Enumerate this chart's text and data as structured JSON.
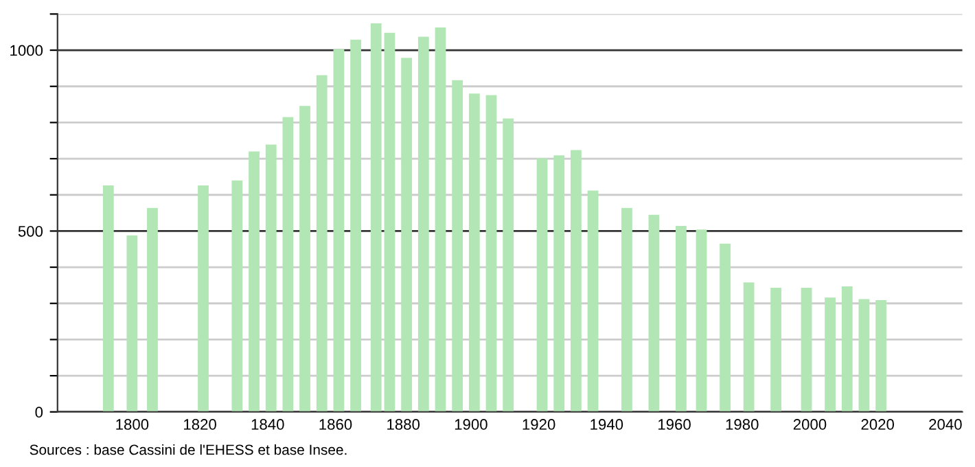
{
  "chart_data": {
    "type": "bar",
    "x": [
      1793,
      1800,
      1806,
      1821,
      1831,
      1836,
      1841,
      1846,
      1851,
      1856,
      1861,
      1866,
      1872,
      1876,
      1881,
      1886,
      1891,
      1896,
      1901,
      1906,
      1911,
      1921,
      1926,
      1931,
      1936,
      1946,
      1954,
      1962,
      1968,
      1975,
      1982,
      1990,
      1999,
      2006,
      2011,
      2016,
      2021
    ],
    "values": [
      626,
      488,
      564,
      626,
      640,
      720,
      739,
      815,
      846,
      931,
      1003,
      1029,
      1074,
      1048,
      979,
      1037,
      1063,
      917,
      880,
      876,
      811,
      701,
      709,
      724,
      612,
      564,
      545,
      514,
      504,
      465,
      358,
      343,
      343,
      316,
      347,
      312,
      309
    ],
    "color": "#b3e6b5",
    "xlim": [
      1778,
      2045
    ],
    "xticks": [
      1800,
      1820,
      1840,
      1860,
      1880,
      1900,
      1920,
      1940,
      1960,
      1980,
      2000,
      2020,
      2040
    ],
    "ylim": [
      0,
      1100
    ],
    "yticks": [
      0,
      {
        "value": 100,
        "label": null
      },
      {
        "value": 200,
        "label": null
      },
      {
        "value": 300,
        "label": null
      },
      {
        "value": 400,
        "label": null
      },
      500,
      {
        "value": 600,
        "label": null
      },
      {
        "value": 700,
        "label": null
      },
      {
        "value": 800,
        "label": null
      },
      {
        "value": 900,
        "label": null
      },
      1000,
      {
        "value": 1100,
        "label": null
      }
    ],
    "grid": "y",
    "annotations": [
      "Sources : base Cassini de l'EHESS et base Insee."
    ]
  }
}
